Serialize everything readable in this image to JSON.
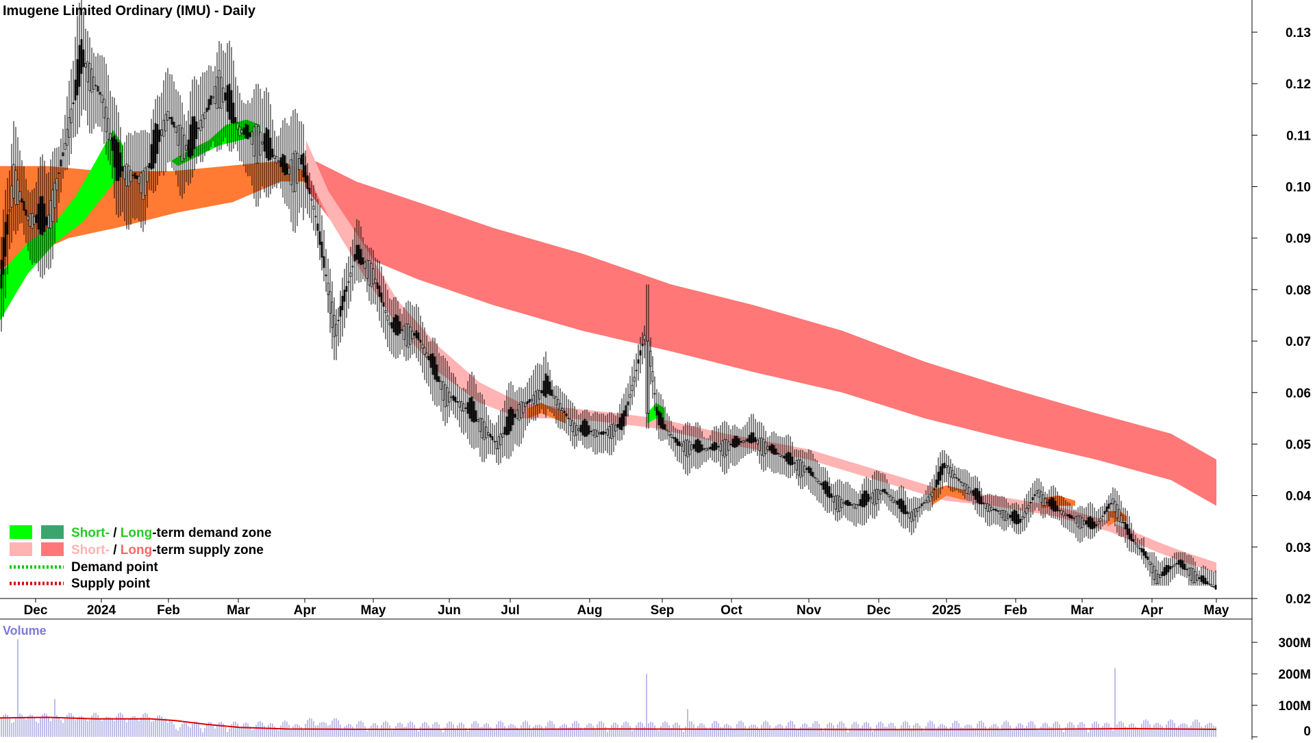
{
  "title": "Imugene Limited Ordinary (IMU) - Daily",
  "volume_label": "Volume",
  "colors": {
    "candle": "#000000",
    "short_demand": "#00ff00",
    "long_demand": "#3aa66e",
    "short_supply": "#ffb3b3",
    "long_supply": "#ff7777",
    "long_demand_band_hist": "#ff7a33",
    "demand_point": "#00cc00",
    "supply_point": "#dd0000",
    "volume_bar": "#7b7bd6",
    "volume_avg": "#dd0000",
    "label_short": "#22cc22",
    "label_long": "#22cc22",
    "label_short_supply": "#ffb3b3",
    "label_long_supply": "#ff6666"
  },
  "legend": {
    "demand_short": "Short-",
    "demand_sep": " / ",
    "demand_long": "Long",
    "demand_rest": "-term demand zone",
    "supply_short": "Short-",
    "supply_sep": " / ",
    "supply_long": "Long",
    "supply_rest": "-term supply zone",
    "demand_point": "Demand point",
    "supply_point": "Supply point"
  },
  "chart_data": {
    "type": "line",
    "title": "Imugene Limited Ordinary (IMU) - Daily",
    "x_ticks": [
      "Dec",
      "2024",
      "Feb",
      "Mar",
      "Apr",
      "May",
      "Jun",
      "Jul",
      "Aug",
      "Sep",
      "Oct",
      "Nov",
      "Dec",
      "2025",
      "Feb",
      "Mar",
      "Apr",
      "May"
    ],
    "y_ticks": [
      "0.13",
      "0.12",
      "0.11",
      "0.10",
      "0.09",
      "0.08",
      "0.07",
      "0.06",
      "0.05",
      "0.04",
      "0.03",
      "0.02"
    ],
    "ylim": [
      0.02,
      0.13
    ],
    "volume_ticks": [
      "300M",
      "200M",
      "100M",
      "0"
    ],
    "volume_ylim": [
      0,
      300000000
    ],
    "price_series": {
      "name": "Price",
      "points": [
        [
          "Dec",
          0.085
        ],
        [
          "Dec",
          0.105
        ],
        [
          "Dec",
          0.095
        ],
        [
          "2024",
          0.115
        ],
        [
          "2024",
          0.125
        ],
        [
          "2024",
          0.105
        ],
        [
          "Feb",
          0.1
        ],
        [
          "Feb",
          0.112
        ],
        [
          "Feb",
          0.108
        ],
        [
          "Mar",
          0.12
        ],
        [
          "Mar",
          0.11
        ],
        [
          "Mar",
          0.108
        ],
        [
          "Apr",
          0.105
        ],
        [
          "Apr",
          0.1
        ],
        [
          "Apr",
          0.085
        ],
        [
          "May",
          0.086
        ],
        [
          "May",
          0.077
        ],
        [
          "May",
          0.07
        ],
        [
          "Jun",
          0.06
        ],
        [
          "Jun",
          0.057
        ],
        [
          "Jul",
          0.052
        ],
        [
          "Jul",
          0.058
        ],
        [
          "Aug",
          0.053
        ],
        [
          "Aug",
          0.052
        ],
        [
          "Sep",
          0.07
        ],
        [
          "Sep",
          0.057
        ],
        [
          "Oct",
          0.05
        ],
        [
          "Oct",
          0.051
        ],
        [
          "Nov",
          0.046
        ],
        [
          "Nov",
          0.038
        ],
        [
          "Dec",
          0.04
        ],
        [
          "Dec",
          0.038
        ],
        [
          "2025",
          0.045
        ],
        [
          "2025",
          0.04
        ],
        [
          "Feb",
          0.037
        ],
        [
          "Feb",
          0.043
        ],
        [
          "Mar",
          0.037
        ],
        [
          "Mar",
          0.035
        ],
        [
          "Apr",
          0.025
        ],
        [
          "Apr",
          0.026
        ],
        [
          "May",
          0.024
        ],
        [
          "May",
          0.022
        ]
      ]
    },
    "series": [
      {
        "name": "Short-term demand zone",
        "points": [
          [
            "Dec",
            0.08
          ],
          [
            "2024",
            0.103
          ],
          [
            "Feb",
            0.105
          ],
          [
            "Mar",
            0.111
          ],
          [
            "Apr",
            0.108
          ]
        ]
      },
      {
        "name": "Long-term supply zone",
        "points": [
          [
            "Apr",
            0.105
          ],
          [
            "Jun",
            0.092
          ],
          [
            "Aug",
            0.081
          ],
          [
            "Oct",
            0.071
          ],
          [
            "Dec",
            0.06
          ],
          [
            "Feb",
            0.053
          ],
          [
            "May",
            0.043
          ]
        ]
      },
      {
        "name": "Short-term supply zone",
        "points": [
          [
            "Apr",
            0.107
          ],
          [
            "May",
            0.08
          ],
          [
            "Jun",
            0.065
          ],
          [
            "Jul",
            0.055
          ],
          [
            "Sep",
            0.055
          ],
          [
            "Nov",
            0.048
          ],
          [
            "2025",
            0.042
          ],
          [
            "Mar",
            0.036
          ],
          [
            "May",
            0.027
          ]
        ]
      }
    ],
    "volume": {
      "spikes": [
        [
          "Dec",
          310000000
        ],
        [
          "Sep",
          200000000
        ],
        [
          "Mar",
          218000000
        ]
      ],
      "average_line": [
        [
          "Dec",
          60000000
        ],
        [
          "Mar",
          40000000
        ],
        [
          "Apr",
          30000000
        ],
        [
          "May",
          20000000
        ]
      ]
    }
  }
}
